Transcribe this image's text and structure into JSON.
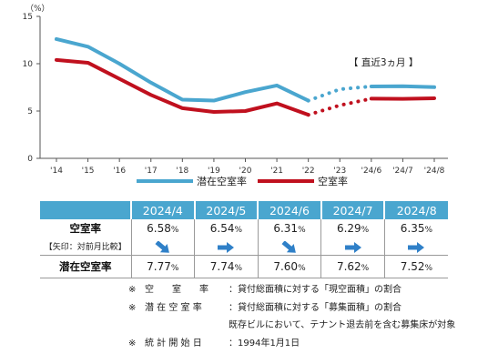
{
  "chart_data": {
    "type": "line",
    "unit_label": "（%）",
    "ylim": [
      0,
      15
    ],
    "y_ticks": [
      0,
      5,
      10,
      15
    ],
    "x_ticks": [
      "'14",
      "'15",
      "'16",
      "'17",
      "'18",
      "'19",
      "'20",
      "'21",
      "'22",
      "'23",
      "'24/6",
      "'24/7",
      "'24/8"
    ],
    "annotation": "【 直近3ヵ月 】",
    "series": [
      {
        "name": "潜在空室率",
        "color": "#4aa6cf",
        "values": [
          12.6,
          11.8,
          10.0,
          8.0,
          6.2,
          6.1,
          7.0,
          7.7,
          6.1,
          7.3,
          7.6,
          7.62,
          7.52
        ]
      },
      {
        "name": "空室率",
        "color": "#c0101e",
        "values": [
          10.4,
          10.1,
          8.4,
          6.7,
          5.3,
          4.9,
          5.0,
          5.8,
          4.6,
          5.6,
          6.31,
          6.29,
          6.35
        ]
      }
    ]
  },
  "table": {
    "months": [
      "2024/4",
      "2024/5",
      "2024/6",
      "2024/7",
      "2024/8"
    ],
    "vacancy_label": "空室率",
    "arrow_note": "【矢印：対前月比較】",
    "potential_label": "潜在空室率",
    "vacancy": [
      {
        "value": "6.58",
        "unit": "%",
        "arrow": "down"
      },
      {
        "value": "6.54",
        "unit": "%",
        "arrow": "flat"
      },
      {
        "value": "6.31",
        "unit": "%",
        "arrow": "down"
      },
      {
        "value": "6.29",
        "unit": "%",
        "arrow": "flat"
      },
      {
        "value": "6.35",
        "unit": "%",
        "arrow": "flat"
      }
    ],
    "potential": [
      {
        "value": "7.77",
        "unit": "%"
      },
      {
        "value": "7.74",
        "unit": "%"
      },
      {
        "value": "7.60",
        "unit": "%"
      },
      {
        "value": "7.62",
        "unit": "%"
      },
      {
        "value": "7.52",
        "unit": "%"
      }
    ],
    "arrow_color": "#2f80c8"
  },
  "notes": [
    {
      "mark": "※",
      "term": "空　　室　　率",
      "desc": "：貸付総面積に対する「現空面積」の割合"
    },
    {
      "mark": "※",
      "term": "潜 在 空 室 率",
      "desc": "：貸付総面積に対する「募集面積」の割合"
    },
    {
      "mark": "",
      "term": "",
      "desc": "既存ビルにおいて、テナント退去前を含む募集床が対象"
    },
    {
      "mark": "※",
      "term": "統 計 開 始 日",
      "desc": "：1994年1月1日"
    }
  ]
}
